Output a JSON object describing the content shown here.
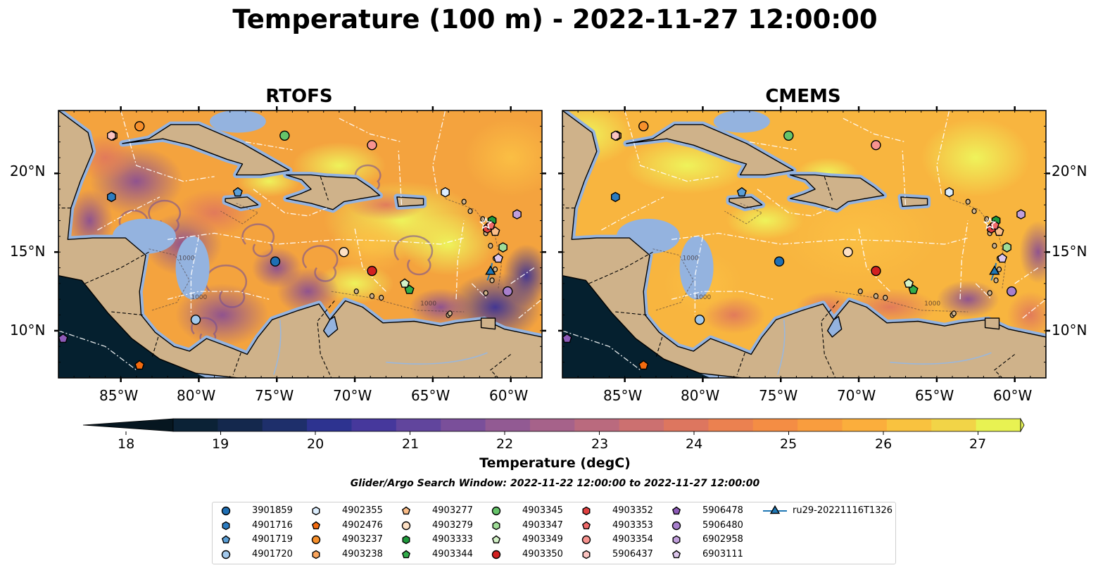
{
  "title": "Temperature (100 m) - 2022-11-27 12:00:00",
  "panels": [
    {
      "title": "RTOFS",
      "style": "rtofs"
    },
    {
      "title": "CMEMS",
      "style": "cmems"
    }
  ],
  "lat_labels": [
    "20°N",
    "15°N",
    "10°N"
  ],
  "lon_labels": [
    "85°W",
    "80°W",
    "75°W",
    "70°W",
    "65°W",
    "60°W"
  ],
  "colorbar": {
    "label": "Temperature (degC)",
    "ticks": [
      "18",
      "19",
      "20",
      "21",
      "22",
      "23",
      "24",
      "25",
      "26",
      "27"
    ],
    "colors": [
      "#0b2236",
      "#14284d",
      "#1e2f6b",
      "#2d3390",
      "#46389c",
      "#61459d",
      "#7a4f9a",
      "#925a93",
      "#a6628a",
      "#ba6a7e",
      "#cc7070",
      "#dd765f",
      "#eb8150",
      "#f48d44",
      "#f99d3e",
      "#fbae3c",
      "#f9c23f",
      "#f2d447",
      "#e8f252"
    ],
    "under_color": "#061620",
    "over_color": "#eaf85a"
  },
  "search_window": "Glider/Argo Search Window: 2022-11-22 12:00:00 to 2022-11-27 12:00:00",
  "colors": {
    "land": "#cfb28a",
    "shallow_water": "#94b3df",
    "pacific": "#05202f",
    "contour": "#ffffff"
  },
  "map_labels": [
    "1000",
    "1000",
    "1000"
  ],
  "legend": [
    {
      "name": "3901859",
      "marker": "circle",
      "color": "#1f6fb4"
    },
    {
      "name": "4901716",
      "marker": "hexagon",
      "color": "#2c7cc0"
    },
    {
      "name": "4901719",
      "marker": "pentagon",
      "color": "#5b9fd6"
    },
    {
      "name": "4901720",
      "marker": "circle",
      "color": "#a3c9ec"
    },
    {
      "name": "4902355",
      "marker": "hexagon",
      "color": "#dceefe"
    },
    {
      "name": "4902476",
      "marker": "pentagon",
      "color": "#f36b0f"
    },
    {
      "name": "4903237",
      "marker": "circle",
      "color": "#f7902c"
    },
    {
      "name": "4903238",
      "marker": "hexagon",
      "color": "#faa55c"
    },
    {
      "name": "4903277",
      "marker": "pentagon",
      "color": "#fbbd88"
    },
    {
      "name": "4903279",
      "marker": "circle",
      "color": "#fde0c4"
    },
    {
      "name": "4903333",
      "marker": "hexagon",
      "color": "#1e9a3b"
    },
    {
      "name": "4903344",
      "marker": "pentagon",
      "color": "#32ad4a"
    },
    {
      "name": "4903345",
      "marker": "circle",
      "color": "#66c46a"
    },
    {
      "name": "4903347",
      "marker": "hexagon",
      "color": "#9fdc97"
    },
    {
      "name": "4903349",
      "marker": "pentagon",
      "color": "#d3f2c7"
    },
    {
      "name": "4903350",
      "marker": "circle",
      "color": "#d32121"
    },
    {
      "name": "4903352",
      "marker": "hexagon",
      "color": "#e04040"
    },
    {
      "name": "4903353",
      "marker": "pentagon",
      "color": "#f06a6a"
    },
    {
      "name": "4903354",
      "marker": "circle",
      "color": "#f7938f"
    },
    {
      "name": "5906437",
      "marker": "hexagon",
      "color": "#fbc3c0"
    },
    {
      "name": "5906478",
      "marker": "pentagon",
      "color": "#8e5bb8"
    },
    {
      "name": "5906480",
      "marker": "circle",
      "color": "#a77fcc"
    },
    {
      "name": "6902958",
      "marker": "hexagon",
      "color": "#c19fdc"
    },
    {
      "name": "6903111",
      "marker": "pentagon",
      "color": "#dcc6ec"
    },
    {
      "name": "ru29-20221116T1326",
      "marker": "triangle",
      "color": "#1f77b4"
    }
  ],
  "markers": [
    {
      "id": "3901859",
      "lon": -75.1,
      "lat": 14.4
    },
    {
      "id": "4901716",
      "lon": -85.6,
      "lat": 18.5
    },
    {
      "id": "4901719",
      "lon": -77.5,
      "lat": 18.8
    },
    {
      "id": "4901720",
      "lon": -80.2,
      "lat": 10.7
    },
    {
      "id": "4902355",
      "lon": -64.2,
      "lat": 18.8
    },
    {
      "id": "4902476",
      "lon": -83.8,
      "lat": 7.8
    },
    {
      "id": "4903237",
      "lon": -83.8,
      "lat": 23.0
    },
    {
      "id": "4903238",
      "lon": -85.5,
      "lat": 22.4
    },
    {
      "id": "4903277",
      "lon": -61.0,
      "lat": 16.3
    },
    {
      "id": "4903279",
      "lon": -70.7,
      "lat": 15.0
    },
    {
      "id": "4903333",
      "lon": -61.2,
      "lat": 17.0
    },
    {
      "id": "4903344",
      "lon": -66.5,
      "lat": 12.6
    },
    {
      "id": "4903345",
      "lon": -74.5,
      "lat": 22.4
    },
    {
      "id": "4903347",
      "lon": -60.5,
      "lat": 15.3
    },
    {
      "id": "4903349",
      "lon": -66.8,
      "lat": 13.0
    },
    {
      "id": "4903350",
      "lon": -68.9,
      "lat": 13.8
    },
    {
      "id": "4903352",
      "lon": -61.5,
      "lat": 16.5
    },
    {
      "id": "4903353",
      "lon": -61.3,
      "lat": 16.7
    },
    {
      "id": "4903354",
      "lon": -68.9,
      "lat": 21.8
    },
    {
      "id": "5906437",
      "lon": -85.6,
      "lat": 22.4
    },
    {
      "id": "5906478",
      "lon": -88.7,
      "lat": 9.5
    },
    {
      "id": "5906480",
      "lon": -60.2,
      "lat": 12.5
    },
    {
      "id": "6902958",
      "lon": -59.6,
      "lat": 17.4
    },
    {
      "id": "6903111",
      "lon": -60.8,
      "lat": 14.6
    },
    {
      "id": "ru29-20221116T1326",
      "lon": -61.3,
      "lat": 13.8
    }
  ]
}
